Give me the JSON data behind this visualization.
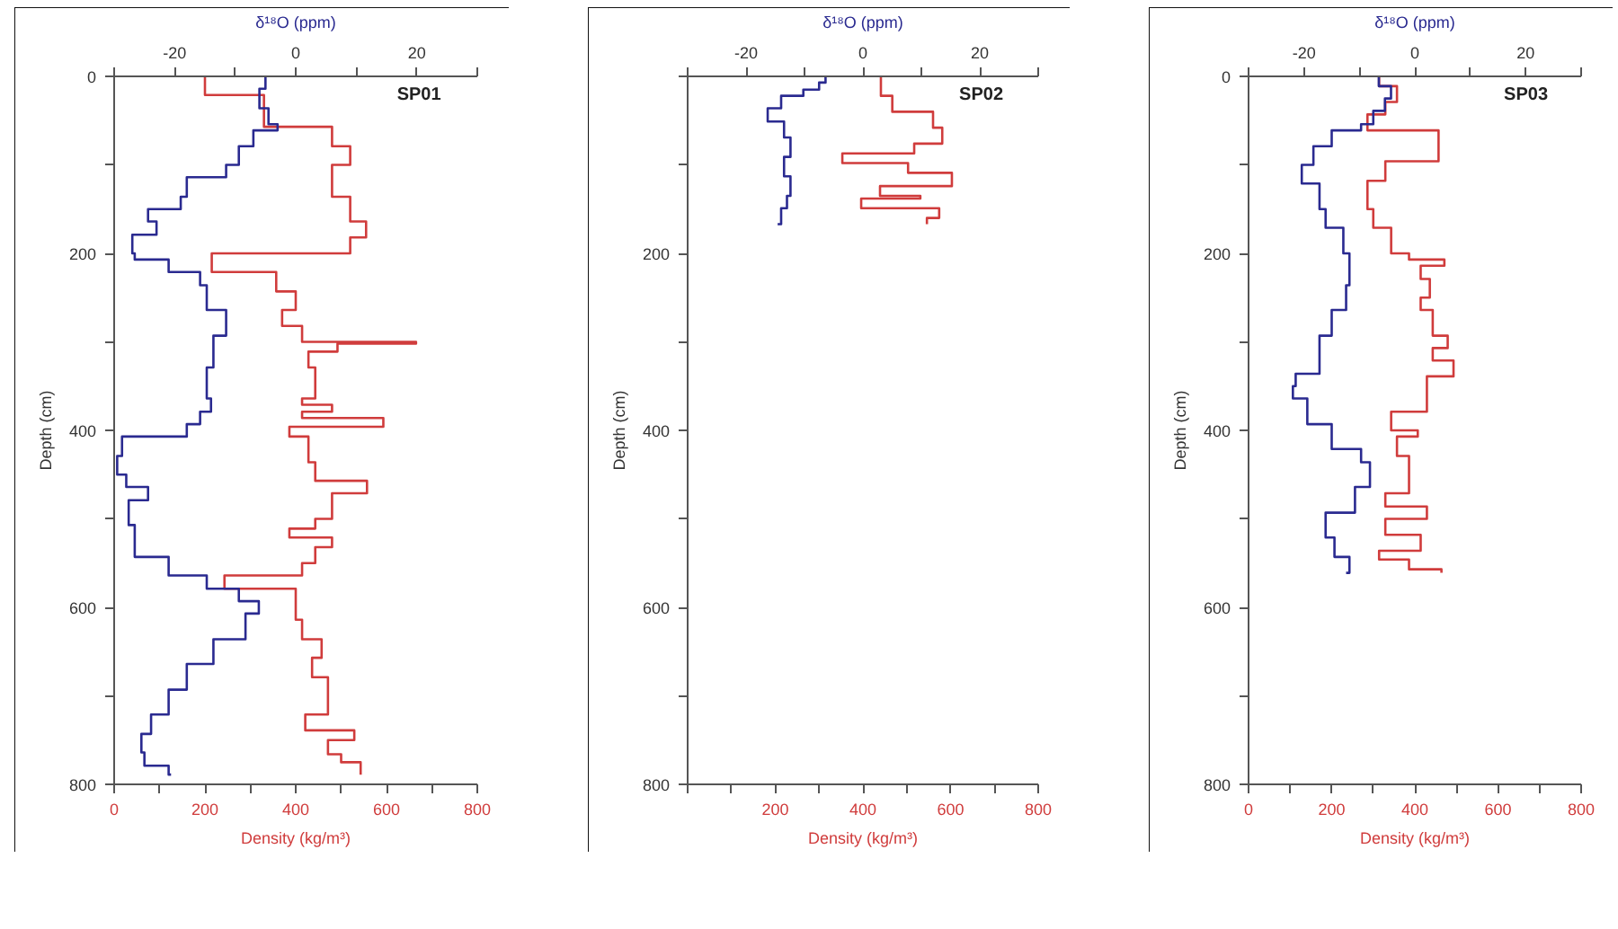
{
  "chart_data": [
    {
      "type": "step",
      "orientation": "horizontal",
      "xlabel": "Density (kg/m³)",
      "x2label": "δ¹⁸O (ppm)",
      "ylabel": "Depth (cm)",
      "annotations": [
        "SP01"
      ],
      "grid": false,
      "xlim": [
        0,
        800
      ],
      "xticks": [
        0,
        {
          "value": 100,
          "label": null
        },
        200,
        {
          "value": 300,
          "label": null
        },
        400,
        {
          "value": 500,
          "label": null
        },
        600,
        {
          "value": 700,
          "label": null
        },
        800
      ],
      "x2lim": [
        -30,
        30
      ],
      "x2ticks": [
        {
          "value": -30,
          "label": null
        },
        -20,
        {
          "value": -10,
          "label": null
        },
        0,
        {
          "value": 10,
          "label": null
        },
        20,
        {
          "value": 30,
          "label": null
        }
      ],
      "ylim": [
        800,
        0
      ],
      "yticks": [
        0,
        {
          "value": 100,
          "label": null
        },
        200,
        {
          "value": 300,
          "label": null
        },
        400,
        {
          "value": 500,
          "label": null
        },
        600,
        {
          "value": 700,
          "label": null
        },
        800
      ],
      "series": [
        {
          "color": "#d03c3c",
          "x": [
            0,
            21,
            57,
            79,
            100,
            136,
            164,
            182,
            200,
            221,
            243,
            264,
            282,
            300,
            302,
            311,
            329,
            364,
            371,
            379,
            386,
            396,
            407,
            436,
            457,
            471,
            500,
            511,
            521,
            532,
            550,
            564,
            579,
            614,
            636,
            657,
            679,
            721,
            739,
            750,
            766,
            775,
            789
          ],
          "values": [
            200,
            330,
            480,
            520,
            480,
            520,
            555,
            520,
            215,
            357,
            400,
            370,
            414,
            665,
            492,
            428,
            443,
            414,
            480,
            414,
            593,
            386,
            428,
            443,
            557,
            480,
            443,
            386,
            480,
            443,
            414,
            243,
            400,
            414,
            457,
            436,
            471,
            421,
            529,
            471,
            500,
            543,
            543
          ]
        },
        {
          "color": "#2a2a90",
          "axis": "x2",
          "x": [
            0,
            14,
            36,
            54,
            61,
            79,
            100,
            114,
            136,
            150,
            164,
            179,
            200,
            207,
            221,
            236,
            264,
            293,
            329,
            364,
            379,
            393,
            407,
            429,
            450,
            464,
            479,
            507,
            543,
            564,
            579,
            593,
            607,
            636,
            664,
            693,
            721,
            743,
            764,
            779,
            789
          ],
          "values": [
            -5,
            -6,
            -4.5,
            -3,
            -7,
            -9.4,
            -11.5,
            -18,
            -19,
            -24.4,
            -23,
            -27,
            -26.6,
            -21,
            -15.8,
            -14.7,
            -11.5,
            -13.6,
            -14.7,
            -14,
            -15.8,
            -18,
            -28.7,
            -29.5,
            -28,
            -24.4,
            -27.6,
            -26.6,
            -21,
            -14.7,
            -9.4,
            -6.1,
            -8.3,
            -13.6,
            -18,
            -21,
            -23.9,
            -25.5,
            -25,
            -21,
            -20.6
          ]
        }
      ]
    },
    {
      "type": "step",
      "orientation": "horizontal",
      "xlabel": "Density (kg/m³)",
      "x2label": "δ¹⁸O (ppm)",
      "ylabel": "Depth (cm)",
      "annotations": [
        "SP02"
      ],
      "grid": false,
      "xlim": [
        0,
        800
      ],
      "xticks": [
        {
          "value": 0,
          "label": null
        },
        {
          "value": 100,
          "label": null
        },
        200,
        {
          "value": 300,
          "label": null
        },
        400,
        {
          "value": 500,
          "label": null
        },
        600,
        {
          "value": 700,
          "label": null
        },
        800
      ],
      "x2lim": [
        -30,
        30
      ],
      "x2ticks": [
        {
          "value": -30,
          "label": null
        },
        -20,
        {
          "value": -10,
          "label": null
        },
        0,
        {
          "value": 10,
          "label": null
        },
        20,
        {
          "value": 30,
          "label": null
        }
      ],
      "ylim": [
        800,
        0
      ],
      "yticks": [
        {
          "value": 0,
          "label": null
        },
        {
          "value": 100,
          "label": null
        },
        200,
        {
          "value": 300,
          "label": null
        },
        400,
        {
          "value": 500,
          "label": null
        },
        600,
        {
          "value": 700,
          "label": null
        },
        800
      ],
      "series": [
        {
          "color": "#d03c3c",
          "x": [
            0,
            22,
            40,
            58,
            76,
            87,
            98,
            109,
            124,
            135,
            138,
            149,
            160,
            167
          ],
          "values": [
            441,
            467,
            560,
            581,
            517,
            353,
            503,
            603,
            439,
            531,
            396,
            574,
            546,
            546
          ]
        },
        {
          "color": "#2a2a90",
          "axis": "x2",
          "x": [
            0,
            7,
            15,
            22,
            36,
            51,
            69,
            91,
            113,
            135,
            149,
            167
          ],
          "values": [
            -6.4,
            -7.5,
            -10.2,
            -14,
            -16.3,
            -13.5,
            -12.4,
            -13.5,
            -12.4,
            -13,
            -14,
            -14.6
          ]
        }
      ]
    },
    {
      "type": "step",
      "orientation": "horizontal",
      "xlabel": "Density (kg/m³)",
      "x2label": "δ¹⁸O (ppm)",
      "ylabel": "Depth (cm)",
      "annotations": [
        "SP03"
      ],
      "grid": false,
      "xlim": [
        0,
        800
      ],
      "xticks": [
        0,
        {
          "value": 100,
          "label": null
        },
        200,
        {
          "value": 300,
          "label": null
        },
        400,
        {
          "value": 500,
          "label": null
        },
        600,
        {
          "value": 700,
          "label": null
        },
        800
      ],
      "x2lim": [
        -30,
        30
      ],
      "x2ticks": [
        {
          "value": -30,
          "label": null
        },
        -20,
        {
          "value": -10,
          "label": null
        },
        0,
        {
          "value": 10,
          "label": null
        },
        20,
        {
          "value": 30,
          "label": null
        }
      ],
      "ylim": [
        800,
        0
      ],
      "yticks": [
        0,
        {
          "value": 100,
          "label": null
        },
        200,
        {
          "value": 300,
          "label": null
        },
        400,
        {
          "value": 500,
          "label": null
        },
        600,
        {
          "value": 700,
          "label": null
        },
        800
      ],
      "series": [
        {
          "color": "#d03c3c",
          "x": [
            0,
            11,
            29,
            43,
            61,
            96,
            118,
            150,
            171,
            200,
            207,
            214,
            229,
            250,
            264,
            293,
            307,
            321,
            339,
            379,
            400,
            407,
            429,
            471,
            486,
            500,
            518,
            536,
            546,
            557,
            561
          ],
          "values": [
            314,
            357,
            329,
            286,
            457,
            329,
            286,
            300,
            343,
            386,
            471,
            414,
            436,
            414,
            443,
            479,
            443,
            493,
            429,
            343,
            407,
            357,
            386,
            329,
            429,
            329,
            414,
            314,
            386,
            464,
            464
          ]
        },
        {
          "color": "#2a2a90",
          "axis": "x2",
          "x": [
            0,
            11,
            25,
            39,
            54,
            61,
            79,
            100,
            121,
            150,
            171,
            200,
            236,
            264,
            293,
            336,
            350,
            364,
            393,
            421,
            436,
            464,
            493,
            507,
            521,
            543,
            561
          ],
          "values": [
            -6.5,
            -4.3,
            -5.4,
            -7.5,
            -9.7,
            -15,
            -18.3,
            -20.4,
            -17.2,
            -16.1,
            -12.9,
            -11.8,
            -12.4,
            -15,
            -17.2,
            -21.5,
            -22,
            -19.4,
            -15,
            -9.7,
            -8.1,
            -10.8,
            -16.1,
            -16.1,
            -14.5,
            -11.8,
            -12.4
          ]
        }
      ]
    }
  ]
}
